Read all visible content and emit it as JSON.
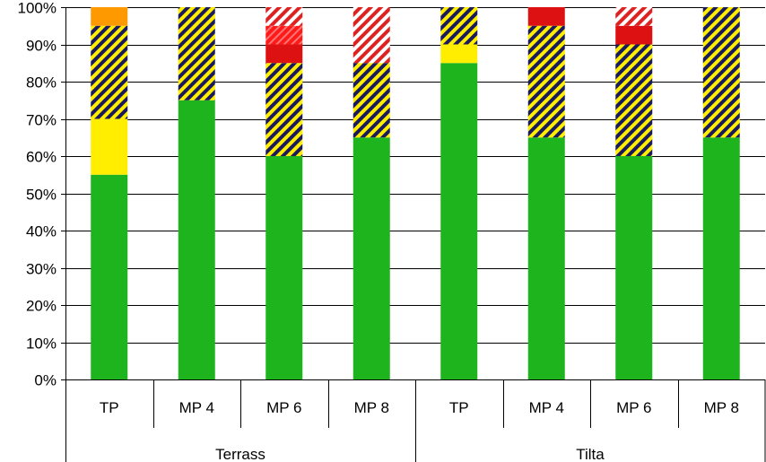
{
  "chart_data": {
    "type": "bar",
    "stacked": true,
    "percent_scale": true,
    "ylim": [
      0,
      100
    ],
    "yticks": [
      "0%",
      "10%",
      "20%",
      "30%",
      "40%",
      "50%",
      "60%",
      "70%",
      "80%",
      "90%",
      "100%"
    ],
    "categories": [
      "TP",
      "MP 4",
      "MP 6",
      "MP 8",
      "TP",
      "MP 4",
      "MP 6",
      "MP 8"
    ],
    "groups": [
      {
        "label": "Terrass",
        "span": [
          0,
          3
        ]
      },
      {
        "label": "Tilta",
        "span": [
          4,
          7
        ]
      }
    ],
    "grid": "horizontal",
    "legend": "none",
    "series": [
      {
        "color": "#1eb41e",
        "pattern": "solid",
        "values": [
          55,
          75,
          60,
          65,
          85,
          65,
          60,
          65
        ]
      },
      {
        "color": "#ffee00",
        "pattern": "solid",
        "values": [
          15,
          0,
          0,
          0,
          5,
          0,
          0,
          0
        ]
      },
      {
        "color": "#ffee00",
        "pattern": "hatch-navy",
        "values": [
          25,
          25,
          25,
          20,
          10,
          30,
          30,
          35
        ]
      },
      {
        "color": "#ff9900",
        "pattern": "solid",
        "values": [
          5,
          0,
          0,
          0,
          0,
          0,
          0,
          0
        ]
      },
      {
        "color": "#dd1111",
        "pattern": "solid",
        "values": [
          0,
          0,
          5,
          0,
          0,
          5,
          5,
          0
        ]
      },
      {
        "color": "#ff2222",
        "pattern": "hatch-red",
        "values": [
          0,
          0,
          5,
          0,
          0,
          0,
          0,
          0
        ]
      },
      {
        "color": "#dd2222",
        "pattern": "hatch-white",
        "values": [
          0,
          0,
          5,
          15,
          0,
          0,
          5,
          0
        ]
      }
    ]
  }
}
